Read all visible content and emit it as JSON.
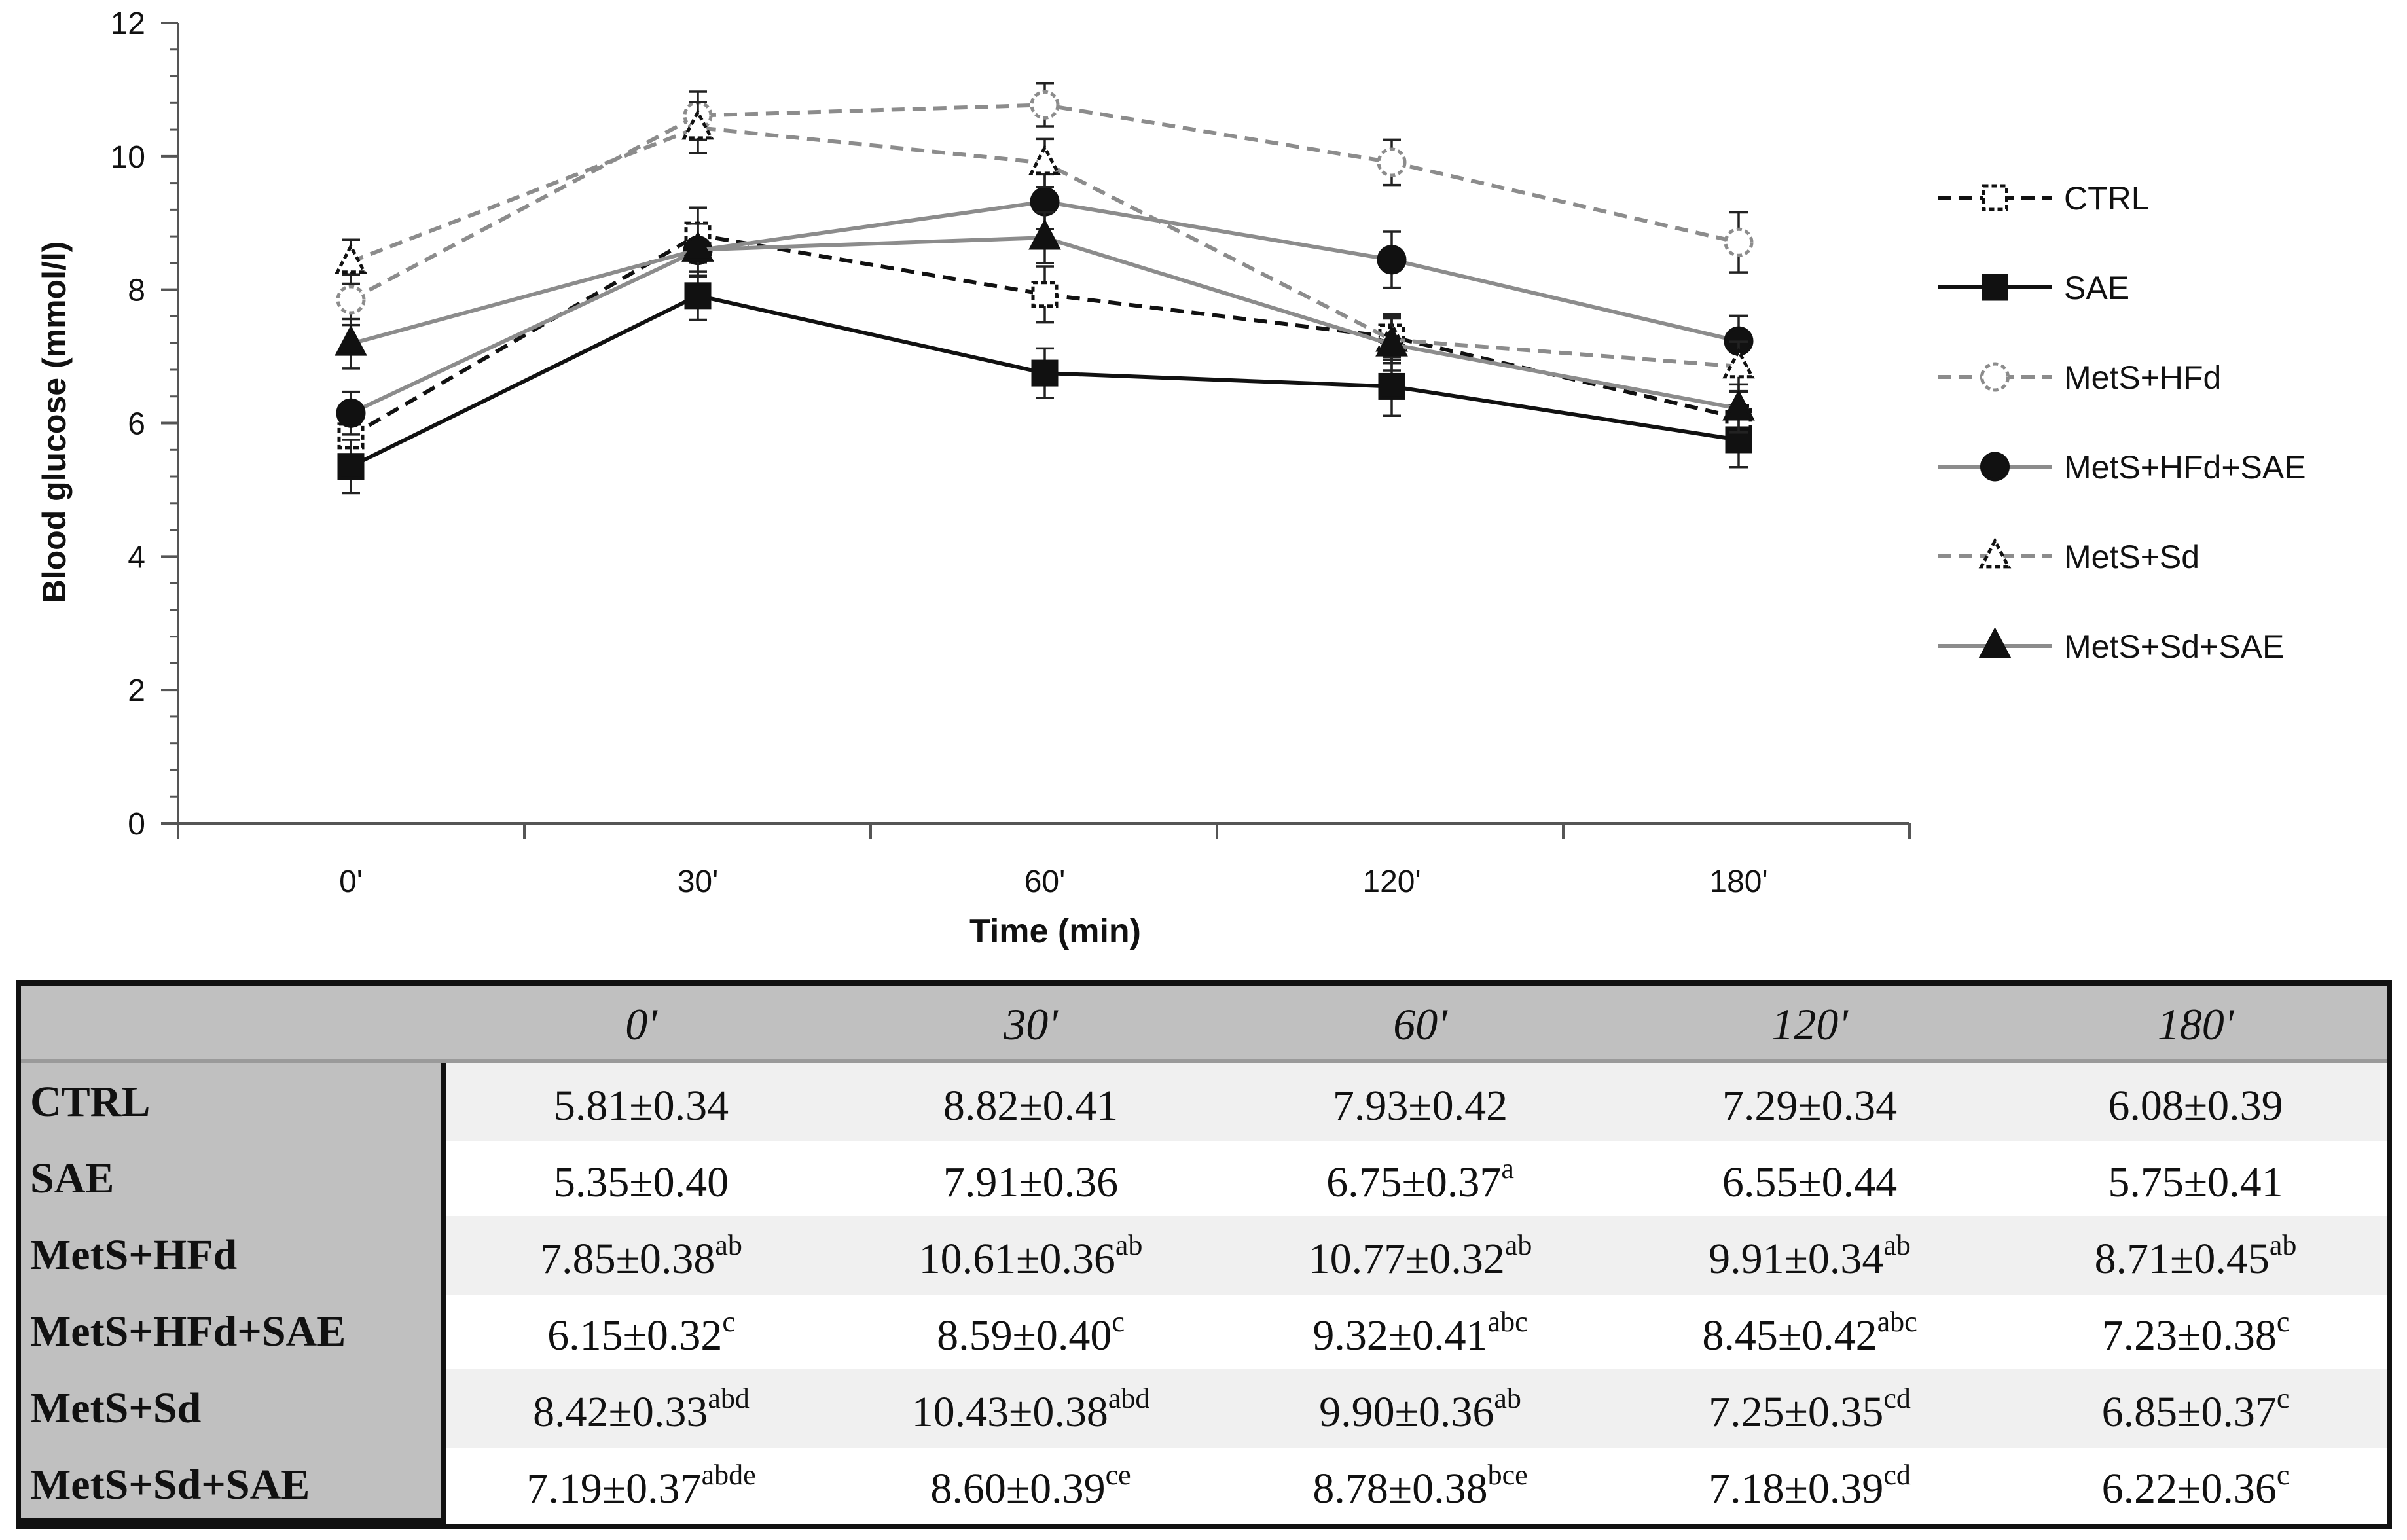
{
  "chart_data": {
    "type": "line",
    "title": "",
    "xlabel": "Time (min)",
    "ylabel": "Blood glucose (mmol/l)",
    "categories": [
      "0'",
      "30'",
      "60'",
      "120'",
      "180'"
    ],
    "ylim": [
      0,
      12
    ],
    "yticks": [
      0,
      2,
      4,
      6,
      8,
      10,
      12
    ],
    "legend_position": "right",
    "series": [
      {
        "name": "CTRL",
        "values": [
          5.81,
          8.82,
          7.93,
          7.29,
          6.08
        ],
        "errors": [
          0.34,
          0.41,
          0.42,
          0.34,
          0.39
        ],
        "color": "#111111",
        "dashed": true,
        "marker": "square",
        "filled": false
      },
      {
        "name": "SAE",
        "values": [
          5.35,
          7.91,
          6.75,
          6.55,
          5.75
        ],
        "errors": [
          0.4,
          0.36,
          0.37,
          0.44,
          0.41
        ],
        "color": "#111111",
        "dashed": false,
        "marker": "square",
        "filled": true
      },
      {
        "name": "MetS+HFd",
        "values": [
          7.85,
          10.61,
          10.77,
          9.91,
          8.71
        ],
        "errors": [
          0.38,
          0.36,
          0.32,
          0.34,
          0.45
        ],
        "color": "#8c8c8c",
        "dashed": true,
        "marker": "circle",
        "filled": false
      },
      {
        "name": "MetS+HFd+SAE",
        "values": [
          6.15,
          8.59,
          9.32,
          8.45,
          7.23
        ],
        "errors": [
          0.32,
          0.4,
          0.41,
          0.42,
          0.38
        ],
        "color": "#8c8c8c",
        "dashed": false,
        "marker": "circle",
        "filled": true
      },
      {
        "name": "MetS+Sd",
        "values": [
          8.42,
          10.43,
          9.9,
          7.25,
          6.85
        ],
        "errors": [
          0.33,
          0.38,
          0.36,
          0.35,
          0.37
        ],
        "color": "#8c8c8c",
        "dashed": true,
        "marker": "triangle",
        "filled": false
      },
      {
        "name": "MetS+Sd+SAE",
        "values": [
          7.19,
          8.6,
          8.78,
          7.18,
          6.22
        ],
        "errors": [
          0.37,
          0.39,
          0.38,
          0.39,
          0.36
        ],
        "color": "#8c8c8c",
        "dashed": false,
        "marker": "triangle",
        "filled": true
      }
    ]
  },
  "table": {
    "columns": [
      "0'",
      "30'",
      "60'",
      "120'",
      "180'"
    ],
    "rows": [
      {
        "name": "CTRL",
        "cells": [
          {
            "v": "5.81±0.34",
            "s": ""
          },
          {
            "v": "8.82±0.41",
            "s": ""
          },
          {
            "v": "7.93±0.42",
            "s": ""
          },
          {
            "v": "7.29±0.34",
            "s": ""
          },
          {
            "v": "6.08±0.39",
            "s": ""
          }
        ]
      },
      {
        "name": "SAE",
        "cells": [
          {
            "v": "5.35±0.40",
            "s": ""
          },
          {
            "v": "7.91±0.36",
            "s": ""
          },
          {
            "v": "6.75±0.37",
            "s": "a"
          },
          {
            "v": "6.55±0.44",
            "s": ""
          },
          {
            "v": "5.75±0.41",
            "s": ""
          }
        ]
      },
      {
        "name": "MetS+HFd",
        "cells": [
          {
            "v": "7.85±0.38",
            "s": "ab"
          },
          {
            "v": "10.61±0.36",
            "s": "ab"
          },
          {
            "v": "10.77±0.32",
            "s": "ab"
          },
          {
            "v": "9.91±0.34",
            "s": "ab"
          },
          {
            "v": "8.71±0.45",
            "s": "ab"
          }
        ]
      },
      {
        "name": "MetS+HFd+SAE",
        "cells": [
          {
            "v": "6.15±0.32",
            "s": "c"
          },
          {
            "v": "8.59±0.40",
            "s": "c"
          },
          {
            "v": "9.32±0.41",
            "s": "abc"
          },
          {
            "v": "8.45±0.42",
            "s": "abc"
          },
          {
            "v": "7.23±0.38",
            "s": "c"
          }
        ]
      },
      {
        "name": "MetS+Sd",
        "cells": [
          {
            "v": "8.42±0.33",
            "s": "abd"
          },
          {
            "v": "10.43±0.38",
            "s": "abd"
          },
          {
            "v": "9.90±0.36",
            "s": "ab"
          },
          {
            "v": "7.25±0.35",
            "s": "cd"
          },
          {
            "v": "6.85±0.37",
            "s": "c"
          }
        ]
      },
      {
        "name": "MetS+Sd+SAE",
        "cells": [
          {
            "v": "7.19±0.37",
            "s": "abde"
          },
          {
            "v": "8.60±0.39",
            "s": "ce"
          },
          {
            "v": "8.78±0.38",
            "s": "bce"
          },
          {
            "v": "7.18±0.39",
            "s": "cd"
          },
          {
            "v": "6.22±0.36",
            "s": "c"
          }
        ]
      }
    ]
  }
}
